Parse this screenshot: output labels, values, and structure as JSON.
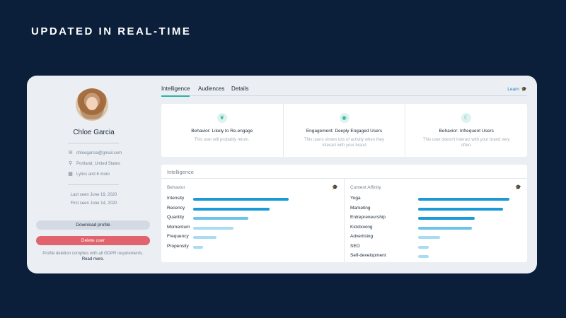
{
  "headline": "UPDATED IN REAL-TIME",
  "profile": {
    "name": "Chloe Garcia",
    "email": "chloegarcia@gmail.com",
    "location": "Portland, United States",
    "company": "Lytics and 6 more",
    "last_seen": "Last seen June 19, 2020",
    "first_seen": "First seen June 14, 2020",
    "download_label": "Download profile",
    "delete_label": "Delete user",
    "gdpr_note": "Profile deletion complies with all GDPR requirements.",
    "read_more": "Read more."
  },
  "tabs": [
    {
      "label": "Intelligence",
      "active": true
    },
    {
      "label": "Audiences",
      "active": false
    },
    {
      "label": "Details",
      "active": false
    }
  ],
  "learn_label": "Learn",
  "segments": [
    {
      "icon": "sprout-icon",
      "title": "Behavior: Likely to Re-engage",
      "desc": "This user will probably return."
    },
    {
      "icon": "target-icon",
      "title": "Engagement: Deeply Engaged Users",
      "desc": "This users shows lots of activity when they interact with your brand"
    },
    {
      "icon": "sleeping-icon",
      "title": "Behavior: Infrequent Users",
      "desc": "This user doesn't interact with your brand very often."
    }
  ],
  "intelligence": {
    "title": "Intelligence",
    "behavior": {
      "heading": "Behavior",
      "items": [
        {
          "label": "Intensity",
          "value": 0.9,
          "color": "#1a9ad6"
        },
        {
          "label": "Recency",
          "value": 0.72,
          "color": "#1a9ad6"
        },
        {
          "label": "Quantity",
          "value": 0.52,
          "color": "#6ec3ea"
        },
        {
          "label": "Momentum",
          "value": 0.38,
          "color": "#a9dbf2"
        },
        {
          "label": "Frequency",
          "value": 0.22,
          "color": "#a9dbf2"
        },
        {
          "label": "Propensity",
          "value": 0.09,
          "color": "#a9dbf2"
        }
      ]
    },
    "affinity": {
      "heading": "Content Affinity",
      "items": [
        {
          "label": "Yoga",
          "value": 0.92,
          "color": "#1a9ad6"
        },
        {
          "label": "Marketing",
          "value": 0.86,
          "color": "#1a9ad6"
        },
        {
          "label": "Entrepreneurship",
          "value": 0.57,
          "color": "#1a9ad6"
        },
        {
          "label": "Kickboxing",
          "value": 0.54,
          "color": "#6ec3ea"
        },
        {
          "label": "Advertising",
          "value": 0.22,
          "color": "#a9dbf2"
        },
        {
          "label": "SEO",
          "value": 0.11,
          "color": "#a9dbf2"
        },
        {
          "label": "Self-development",
          "value": 0.11,
          "color": "#a9dbf2"
        }
      ]
    }
  }
}
